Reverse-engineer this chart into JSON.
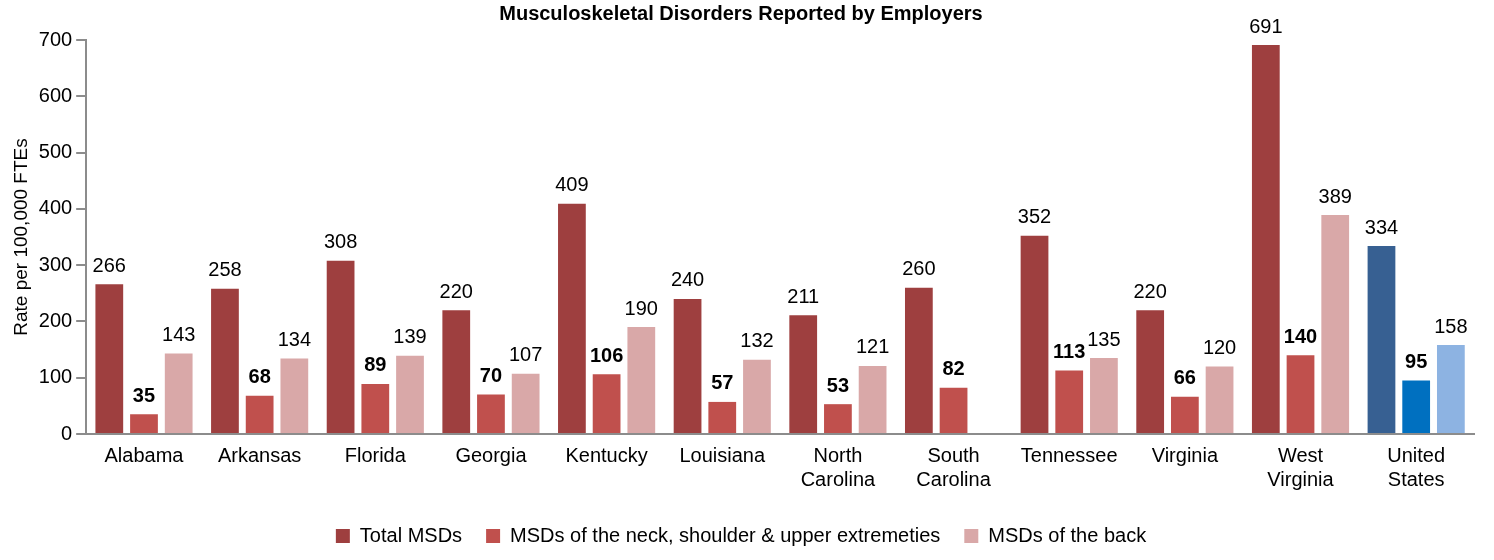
{
  "chart_data": {
    "type": "bar",
    "title": "Musculoskeletal Disorders Reported by Employers",
    "ylabel": "Rate per 100,000 FTEs",
    "categories": [
      "Alabama",
      "Arkansas",
      "Florida",
      "Georgia",
      "Kentucky",
      "Louisiana",
      "North Carolina",
      "South Carolina",
      "Tennessee",
      "Virginia",
      "West Virginia",
      "United States"
    ],
    "series": [
      {
        "name": "Total MSDs",
        "color": "#9e3f3f",
        "colors": [
          "#9e3f3f",
          "#9e3f3f",
          "#9e3f3f",
          "#9e3f3f",
          "#9e3f3f",
          "#9e3f3f",
          "#9e3f3f",
          "#9e3f3f",
          "#9e3f3f",
          "#9e3f3f",
          "#9e3f3f",
          "#376092"
        ],
        "values": [
          266,
          258,
          308,
          220,
          409,
          240,
          211,
          260,
          352,
          220,
          691,
          334
        ]
      },
      {
        "name": "MSDs of the neck, shoulder & upper extremeties",
        "color": "#c0504d",
        "colors": [
          "#c0504d",
          "#c0504d",
          "#c0504d",
          "#c0504d",
          "#c0504d",
          "#c0504d",
          "#c0504d",
          "#c0504d",
          "#c0504d",
          "#c0504d",
          "#c0504d",
          "#0070c0"
        ],
        "values": [
          35,
          68,
          89,
          70,
          106,
          57,
          53,
          82,
          113,
          66,
          140,
          95
        ]
      },
      {
        "name": "MSDs of the back",
        "color": "#d9a8a8",
        "colors": [
          "#d9a8a8",
          "#d9a8a8",
          "#d9a8a8",
          "#d9a8a8",
          "#d9a8a8",
          "#d9a8a8",
          "#d9a8a8",
          "#d9a8a8",
          "#d9a8a8",
          "#d9a8a8",
          "#d9a8a8",
          "#8db3e2"
        ],
        "values": [
          143,
          134,
          139,
          107,
          190,
          132,
          121,
          null,
          135,
          120,
          389,
          158
        ]
      }
    ],
    "ylim": [
      0,
      700
    ],
    "yticks": [
      0,
      100,
      200,
      300,
      400,
      500,
      600,
      700
    ],
    "data_labels": true,
    "legend": "bottom"
  }
}
